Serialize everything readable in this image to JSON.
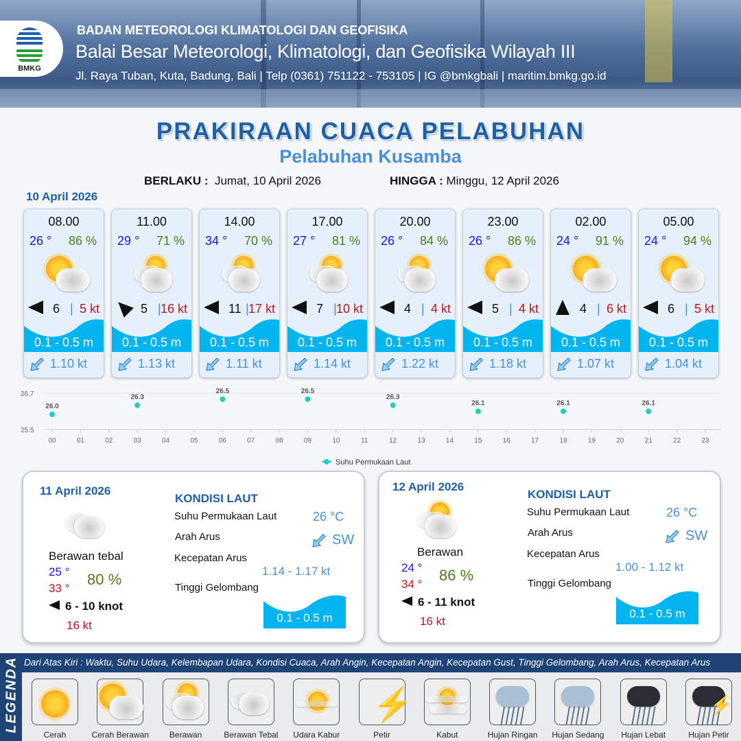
{
  "header": {
    "org": "BADAN METEOROLOGI KLIMATOLOGI DAN GEOFISIKA",
    "office": "Balai Besar Meteorologi, Klimatologi, dan Geofisika Wilayah III",
    "contact": "Jl. Raya Tuban, Kuta, Badung, Bali | Telp (0361) 751122 - 753105 | IG @bmkgbali | maritim.bmkg.go.id",
    "logo_text": "BMKG"
  },
  "title": "PRAKIRAAN CUACA PELABUHAN",
  "subtitle": "Pelabuhan Kusamba",
  "validity": {
    "from_label": "BERLAKU :",
    "from": "Jumat, 10 April 2026",
    "to_label": "HINGGA :",
    "to": "Minggu, 12 April 2026"
  },
  "day1": {
    "date": "10 April 2026",
    "forecasts": [
      {
        "time": "08.00",
        "temp": "26 °",
        "rh": "86 %",
        "condition": "Cerah Berawan",
        "wind_dir": "W",
        "wind_speed": "6",
        "gust": "5 kt",
        "wave": "0.1 - 0.5 m",
        "current_dir": "SW",
        "current_speed": "1.10 kt"
      },
      {
        "time": "11.00",
        "temp": "29 °",
        "rh": "71 %",
        "condition": "Berawan",
        "wind_dir": "NW",
        "wind_speed": "5",
        "gust": "16 kt",
        "wave": "0.1 - 0.5 m",
        "current_dir": "SW",
        "current_speed": "1.13 kt"
      },
      {
        "time": "14.00",
        "temp": "34 °",
        "rh": "70 %",
        "condition": "Berawan",
        "wind_dir": "W",
        "wind_speed": "11",
        "gust": "17 kt",
        "wave": "0.1 - 0.5 m",
        "current_dir": "SW",
        "current_speed": "1.11 kt"
      },
      {
        "time": "17.00",
        "temp": "27 °",
        "rh": "81 %",
        "condition": "Berawan",
        "wind_dir": "W",
        "wind_speed": "7",
        "gust": "10 kt",
        "wave": "0.1 - 0.5 m",
        "current_dir": "SW",
        "current_speed": "1.14 kt"
      },
      {
        "time": "20.00",
        "temp": "26 °",
        "rh": "84 %",
        "condition": "Berawan",
        "wind_dir": "W",
        "wind_speed": "4",
        "gust": "4 kt",
        "wave": "0.1 - 0.5 m",
        "current_dir": "SW",
        "current_speed": "1.22 kt"
      },
      {
        "time": "23.00",
        "temp": "26 °",
        "rh": "86 %",
        "condition": "Cerah Berawan",
        "wind_dir": "W",
        "wind_speed": "5",
        "gust": "4 kt",
        "wave": "0.1 - 0.5 m",
        "current_dir": "SW",
        "current_speed": "1.18 kt"
      },
      {
        "time": "02.00",
        "temp": "24 °",
        "rh": "91 %",
        "condition": "Cerah Berawan",
        "wind_dir": "N",
        "wind_speed": "4",
        "gust": "6 kt",
        "wave": "0.1 - 0.5 m",
        "current_dir": "SW",
        "current_speed": "1.07 kt"
      },
      {
        "time": "05.00",
        "temp": "24 °",
        "rh": "94 %",
        "condition": "Cerah Berawan",
        "wind_dir": "W",
        "wind_speed": "6",
        "gust": "5 kt",
        "wave": "0.1 - 0.5 m",
        "current_dir": "SW",
        "current_speed": "1.04 kt"
      }
    ]
  },
  "chart_data": {
    "type": "scatter",
    "title": "",
    "xlabel": "",
    "ylabel": "",
    "categories": [
      "00",
      "01",
      "02",
      "03",
      "04",
      "05",
      "06",
      "07",
      "08",
      "09",
      "10",
      "11",
      "12",
      "13",
      "14",
      "15",
      "16",
      "17",
      "18",
      "19",
      "20",
      "21",
      "22",
      "23"
    ],
    "ylim": [
      25.5,
      26.7
    ],
    "yticks": [
      "25.5",
      "26.7"
    ],
    "grid": true,
    "legend": "bottom",
    "color": "#1ecfc0",
    "series": [
      {
        "name": "Suhu Permukaan Laut",
        "x": [
          "00",
          "03",
          "06",
          "09",
          "12",
          "15",
          "18",
          "21"
        ],
        "values": [
          26.0,
          26.3,
          26.5,
          26.5,
          26.3,
          26.1,
          26.1,
          26.1
        ],
        "labels": [
          "26.0",
          "26.3",
          "26.5",
          "26.5",
          "26.3",
          "26.1",
          "26.1",
          "26.1"
        ]
      }
    ]
  },
  "days": [
    {
      "date": "11 April 2026",
      "condition": "Berawan tebal",
      "tmin": "25 °",
      "tmax": "33 °",
      "rh": "80 %",
      "wind_dir": "W",
      "wind": "6  - 10 knot",
      "gust": "16 kt",
      "sea_title": "KONDISI LAUT",
      "sst_label": "Suhu Permukaan Laut",
      "sst": "26 °C",
      "cur_dir_label": "Arah Arus",
      "cur_dir": "SW",
      "cur_speed_label": "Kecepatan Arus",
      "cur_speed": "1.14 - 1.17 kt",
      "wave_label": "Tinggi Gelombang",
      "wave": "0.1 - 0.5 m"
    },
    {
      "date": "12 April 2026",
      "condition": "Berawan",
      "tmin": "24 °",
      "tmax": "34 °",
      "rh": "86 %",
      "wind_dir": "W",
      "wind": "6  - 11 knot",
      "gust": "16 kt",
      "sea_title": "KONDISI LAUT",
      "sst_label": "Suhu Permukaan Laut",
      "sst": "26 °C",
      "cur_dir_label": "Arah Arus",
      "cur_dir": "SW",
      "cur_speed_label": "Kecepatan Arus",
      "cur_speed": "1.00 - 1.12 kt",
      "wave_label": "Tinggi Gelombang",
      "wave": "0.1 - 0.5 m"
    }
  ],
  "legend": {
    "title": "LEGENDA",
    "description": "Dari Atas Kiri : Waktu, Suhu Udara, Kelembapan Udara, Kondisi Cuaca, Arah Angin, Kecepatan Angin, Kecepatan Gust, Tinggi Gelombang, Arah Arus, Kecepatan Arus",
    "items": [
      "Cerah",
      "Cerah Berawan",
      "Berawan",
      "Berawan Tebal",
      "Udara Kabur",
      "Petir",
      "Kabut",
      "Hujan Ringan",
      "Hujan Sedang",
      "Hujan Lebat",
      "Hujan Petir"
    ]
  },
  "colors": {
    "temp": "#1414f0",
    "humidity": "#4a7d1c",
    "gust": "#c0141c",
    "wave": "#00b4f0",
    "current": "#4a90d9",
    "title": "#1f5fa8"
  }
}
